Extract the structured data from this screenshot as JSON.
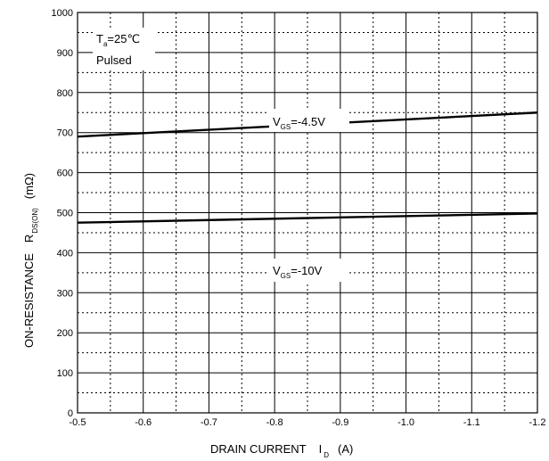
{
  "chart_data": {
    "type": "line",
    "xlim": [
      -0.5,
      -1.2
    ],
    "ylim": [
      0,
      1000
    ],
    "x_ticks": [
      -0.5,
      -0.6,
      -0.7,
      -0.8,
      -0.9,
      -1.0,
      -1.1,
      -1.2
    ],
    "x_tick_labels": [
      "-0.5",
      "-0.6",
      "-0.7",
      "-0.8",
      "-0.9",
      "-1.0",
      "-1.1",
      "-1.2"
    ],
    "y_ticks": [
      0,
      100,
      200,
      300,
      400,
      500,
      600,
      700,
      800,
      900,
      1000
    ],
    "y_tick_labels": [
      "0",
      "100",
      "200",
      "300",
      "400",
      "500",
      "600",
      "700",
      "800",
      "900",
      "1000"
    ],
    "grid": true,
    "xlabel": {
      "main": "DRAIN CURRENT",
      "symbol": "I",
      "sub": "D",
      "unit": "(A)"
    },
    "ylabel": {
      "main": "ON-RESISTANCE",
      "symbol": "R",
      "sub": "DS(ON)",
      "unit": "(mΩ)"
    },
    "conditions": {
      "ta_symbol": "T",
      "ta_sub": "a",
      "ta_value": "=25℃",
      "pulsed": "Pulsed"
    },
    "series": [
      {
        "symbol": "V",
        "sub": "GS",
        "value": "=-4.5V",
        "x": [
          -0.5,
          -1.2
        ],
        "y": [
          690,
          750
        ],
        "color": "#000000"
      },
      {
        "symbol": "V",
        "sub": "GS",
        "value": "=-10V",
        "x": [
          -0.5,
          -1.2
        ],
        "y": [
          475,
          498
        ],
        "color": "#000000"
      }
    ]
  }
}
